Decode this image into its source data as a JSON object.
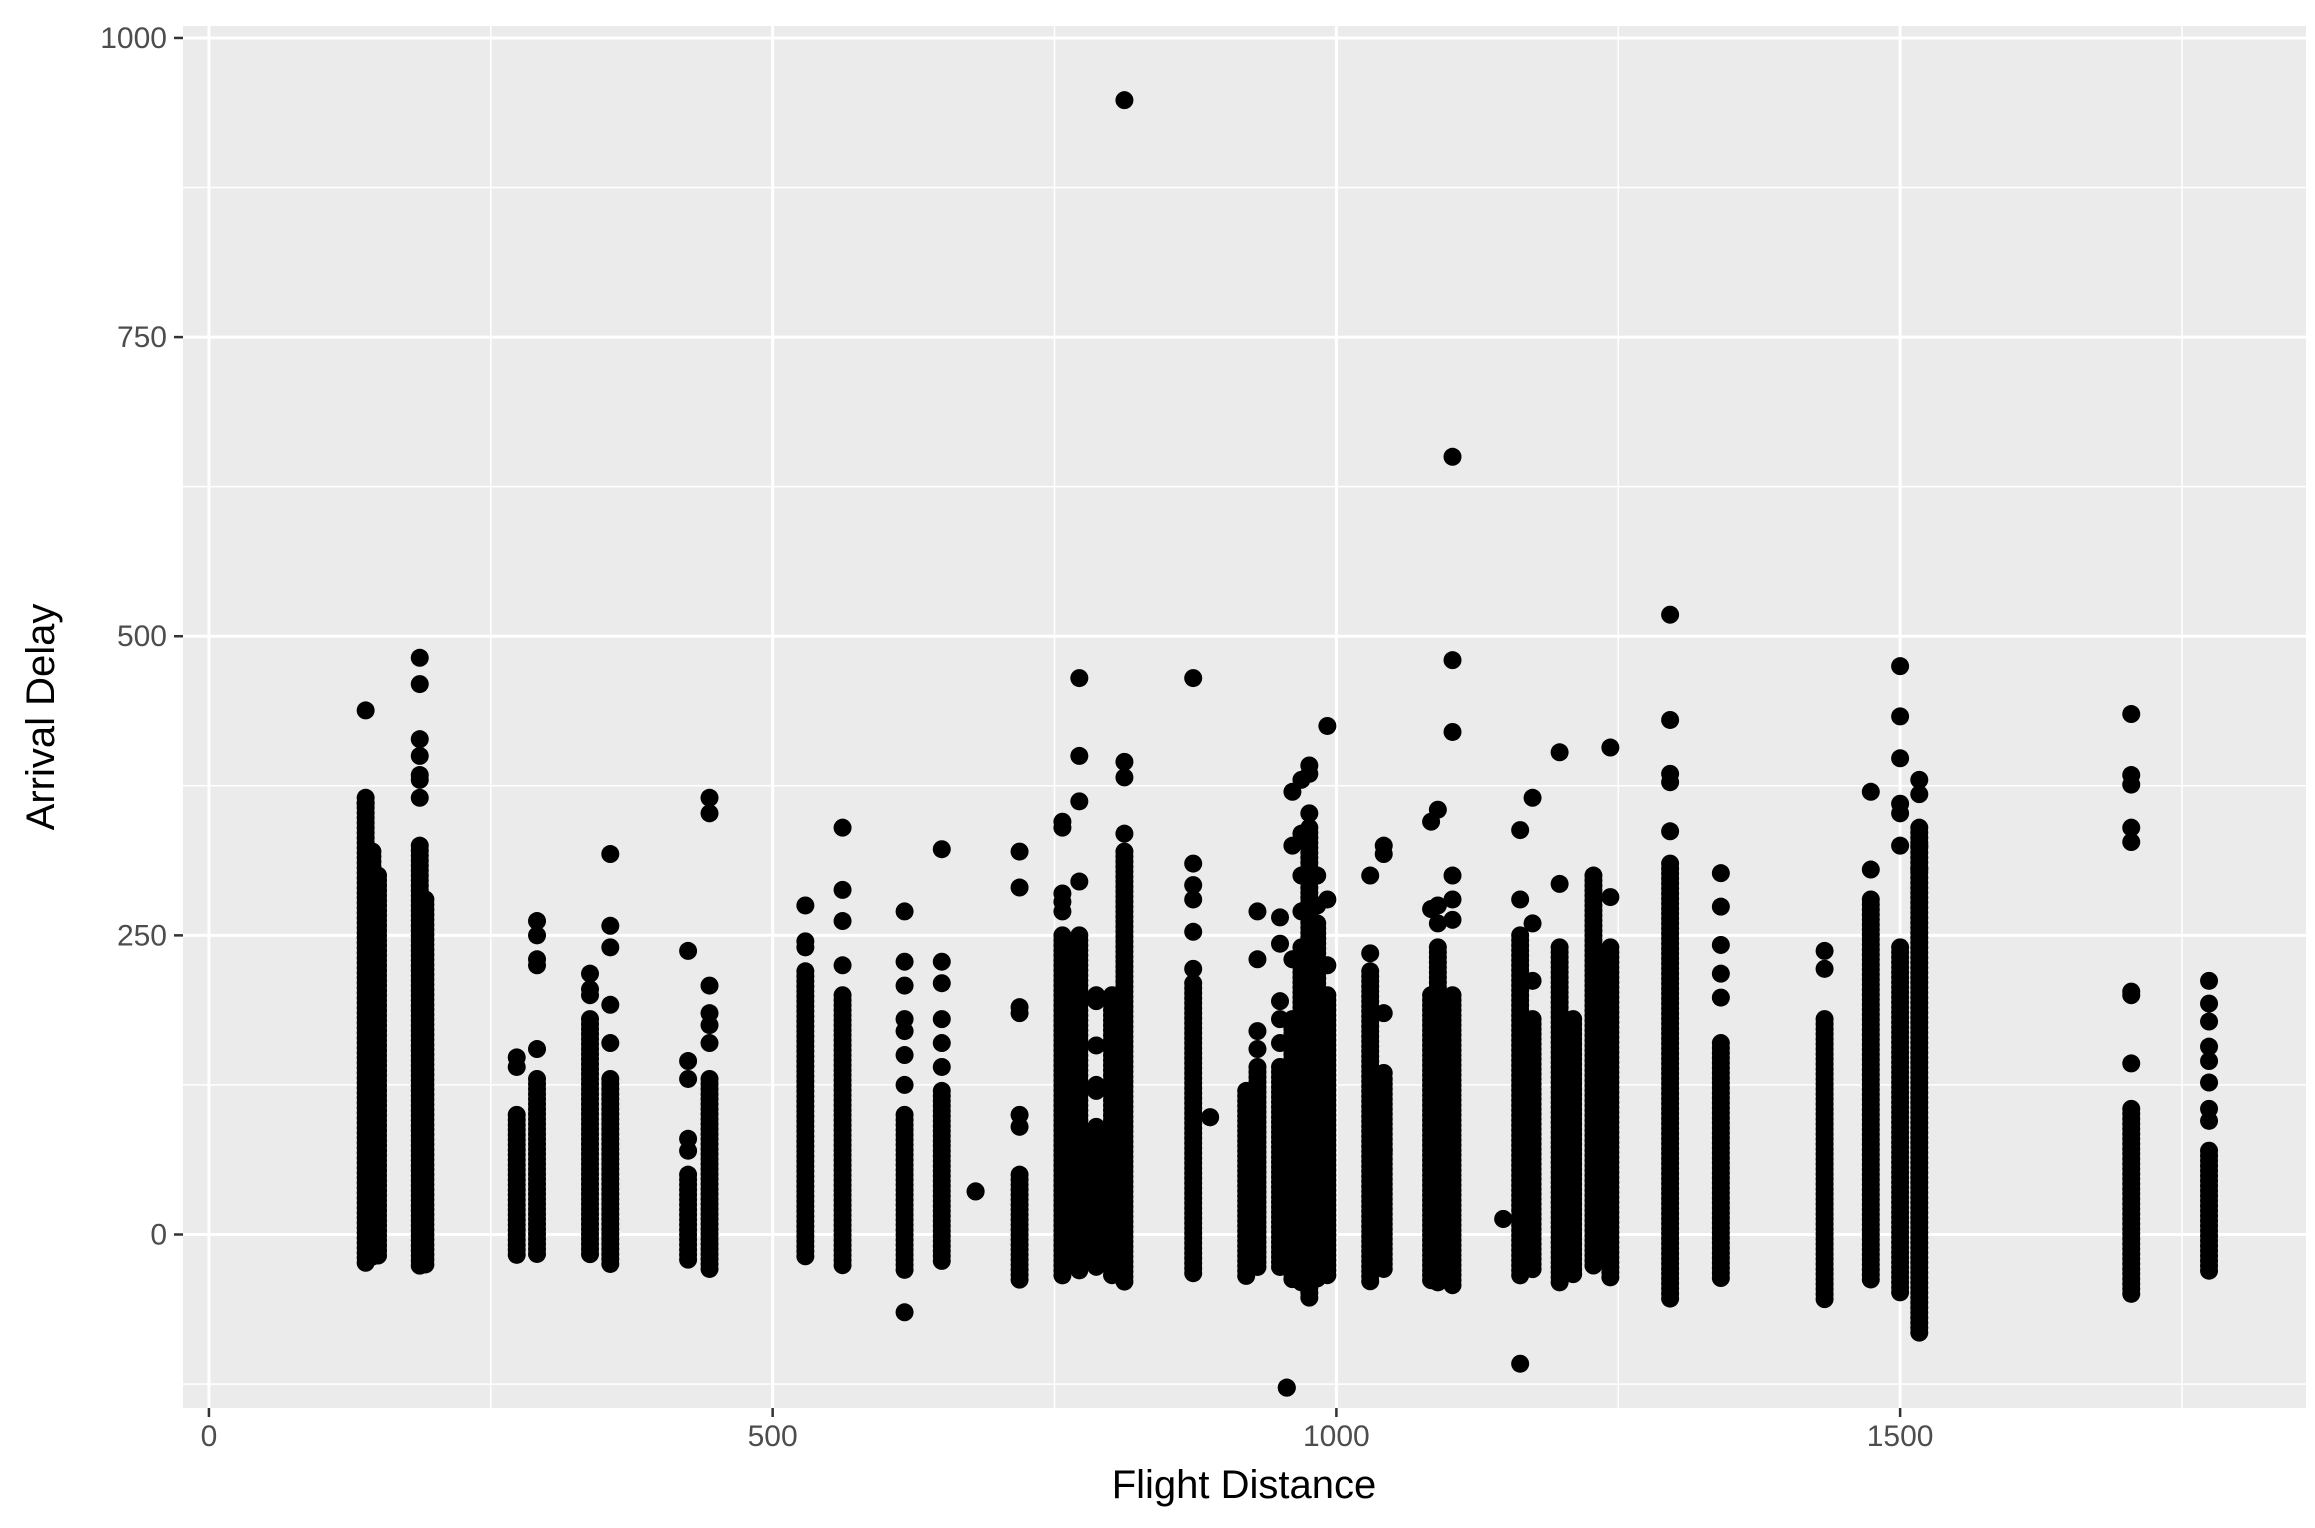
{
  "chart_data": {
    "type": "scatter",
    "title": "",
    "xlabel": "Flight Distance",
    "ylabel": "Arrival Delay",
    "xlim": [
      -23,
      1860
    ],
    "ylim": [
      -145,
      1010
    ],
    "x_ticks": [
      0,
      500,
      1000,
      1500
    ],
    "x_tick_labels": [
      "0",
      "500",
      "1000",
      "1500"
    ],
    "y_ticks": [
      0,
      250,
      500,
      750,
      1000
    ],
    "y_tick_labels": [
      "0",
      "250",
      "500",
      "750",
      "1000"
    ],
    "grid": true,
    "legend": "none",
    "colors": {
      "panel": "#ebebeb",
      "grid": "#ffffff",
      "point": "#000000",
      "tick_text": "#4d4d4d",
      "tick_mark": "#333333"
    },
    "columns": [
      {
        "x": 139,
        "min": -25,
        "max": 365,
        "outliers": [
          438,
          360
        ]
      },
      {
        "x": 145,
        "min": -20,
        "max": 320,
        "outliers": []
      },
      {
        "x": 150,
        "min": -20,
        "max": 300,
        "outliers": []
      },
      {
        "x": 187,
        "min": -28,
        "max": 325,
        "outliers": [
          482,
          460,
          414,
          400,
          384,
          380,
          365
        ]
      },
      {
        "x": 192,
        "min": -25,
        "max": 280,
        "outliers": []
      },
      {
        "x": 273,
        "min": -20,
        "max": 100,
        "outliers": [
          148,
          140
        ]
      },
      {
        "x": 291,
        "min": -20,
        "max": 130,
        "outliers": [
          262,
          250,
          230,
          225,
          155
        ]
      },
      {
        "x": 338,
        "min": -20,
        "max": 180,
        "outliers": [
          218,
          205,
          200
        ]
      },
      {
        "x": 356,
        "min": -25,
        "max": 130,
        "outliers": [
          318,
          258,
          240,
          192,
          160
        ]
      },
      {
        "x": 425,
        "min": -25,
        "max": 50,
        "outliers": [
          237,
          145,
          130,
          80,
          70
        ]
      },
      {
        "x": 444,
        "min": -30,
        "max": 130,
        "outliers": [
          365,
          352,
          208,
          185,
          175,
          160
        ]
      },
      {
        "x": 529,
        "min": -20,
        "max": 220,
        "outliers": [
          275,
          245,
          240
        ]
      },
      {
        "x": 562,
        "min": -28,
        "max": 200,
        "outliers": [
          340,
          288,
          262,
          225
        ]
      },
      {
        "x": 617,
        "min": -30,
        "max": 100,
        "outliers": [
          270,
          228,
          208,
          180,
          170,
          150,
          125,
          -65
        ]
      },
      {
        "x": 650,
        "min": -25,
        "max": 120,
        "outliers": [
          322,
          228,
          210,
          180,
          160,
          140
        ]
      },
      {
        "x": 680,
        "min": 36,
        "max": 36,
        "outliers": []
      },
      {
        "x": 719,
        "min": -38,
        "max": 50,
        "outliers": [
          320,
          290,
          190,
          185,
          100,
          90
        ]
      },
      {
        "x": 757,
        "min": -35,
        "max": 250,
        "outliers": [
          345,
          340,
          285,
          278,
          270
        ]
      },
      {
        "x": 772,
        "min": -30,
        "max": 250,
        "outliers": [
          465,
          400,
          362,
          295
        ]
      },
      {
        "x": 787,
        "min": -28,
        "max": 90,
        "outliers": [
          200,
          195,
          158,
          125,
          120
        ]
      },
      {
        "x": 801,
        "min": -38,
        "max": 200,
        "outliers": []
      },
      {
        "x": 812,
        "min": -40,
        "max": 320,
        "outliers": [
          948,
          395,
          382,
          335
        ]
      },
      {
        "x": 873,
        "min": -35,
        "max": 210,
        "outliers": [
          465,
          310,
          292,
          280,
          253,
          222
        ]
      },
      {
        "x": 888,
        "min": 98,
        "max": 98,
        "outliers": []
      },
      {
        "x": 920,
        "min": -35,
        "max": 120,
        "outliers": []
      },
      {
        "x": 930,
        "min": -30,
        "max": 140,
        "outliers": [
          270,
          230,
          170,
          155
        ]
      },
      {
        "x": 950,
        "min": -30,
        "max": 140,
        "outliers": [
          265,
          243,
          195,
          180,
          160
        ]
      },
      {
        "x": 956,
        "min": -128,
        "max": -128,
        "outliers": []
      },
      {
        "x": 961,
        "min": -40,
        "max": 180,
        "outliers": [
          370,
          325,
          230
        ]
      },
      {
        "x": 969,
        "min": -40,
        "max": 240,
        "outliers": [
          380,
          335,
          300,
          270
        ]
      },
      {
        "x": 976,
        "min": -55,
        "max": 340,
        "outliers": [
          392,
          385,
          352
        ]
      },
      {
        "x": 983,
        "min": -40,
        "max": 260,
        "outliers": [
          300,
          275
        ]
      },
      {
        "x": 992,
        "min": -35,
        "max": 200,
        "outliers": [
          425,
          280,
          225
        ]
      },
      {
        "x": 1030,
        "min": -40,
        "max": 220,
        "outliers": [
          300,
          235
        ]
      },
      {
        "x": 1042,
        "min": -30,
        "max": 130,
        "outliers": [
          325,
          318,
          185,
          135,
          70
        ]
      },
      {
        "x": 1084,
        "min": -40,
        "max": 200,
        "outliers": [
          345,
          272
        ]
      },
      {
        "x": 1090,
        "min": -40,
        "max": 240,
        "outliers": [
          355,
          275,
          260
        ]
      },
      {
        "x": 1103,
        "min": -45,
        "max": 200,
        "outliers": [
          650,
          480,
          420,
          300,
          280,
          263
        ]
      },
      {
        "x": 1148,
        "min": 13,
        "max": 13,
        "outliers": []
      },
      {
        "x": 1163,
        "min": -35,
        "max": 250,
        "outliers": [
          338,
          280,
          -108
        ]
      },
      {
        "x": 1174,
        "min": -30,
        "max": 180,
        "outliers": [
          365,
          260,
          212
        ]
      },
      {
        "x": 1198,
        "min": -40,
        "max": 240,
        "outliers": [
          403,
          293
        ]
      },
      {
        "x": 1210,
        "min": -35,
        "max": 180,
        "outliers": []
      },
      {
        "x": 1228,
        "min": -30,
        "max": 300,
        "outliers": []
      },
      {
        "x": 1243,
        "min": -38,
        "max": 240,
        "outliers": [
          407,
          282
        ]
      },
      {
        "x": 1296,
        "min": -55,
        "max": 310,
        "outliers": [
          518,
          430,
          385,
          378,
          337
        ]
      },
      {
        "x": 1341,
        "min": -40,
        "max": 160,
        "outliers": [
          302,
          274,
          242,
          218,
          198
        ]
      },
      {
        "x": 1433,
        "min": -55,
        "max": 180,
        "outliers": [
          237,
          222
        ]
      },
      {
        "x": 1474,
        "min": -40,
        "max": 280,
        "outliers": [
          370,
          305
        ]
      },
      {
        "x": 1500,
        "min": -50,
        "max": 240,
        "outliers": [
          475,
          433,
          398,
          360,
          352,
          325
        ]
      },
      {
        "x": 1517,
        "min": -82,
        "max": 340,
        "outliers": [
          380,
          368,
          325,
          305
        ]
      },
      {
        "x": 1705,
        "min": -50,
        "max": 105,
        "outliers": [
          435,
          384,
          376,
          340,
          328,
          203,
          200,
          143
        ]
      },
      {
        "x": 1774,
        "min": -32,
        "max": 70,
        "outliers": [
          212,
          193,
          178,
          157,
          145,
          127,
          105,
          95
        ]
      }
    ]
  }
}
